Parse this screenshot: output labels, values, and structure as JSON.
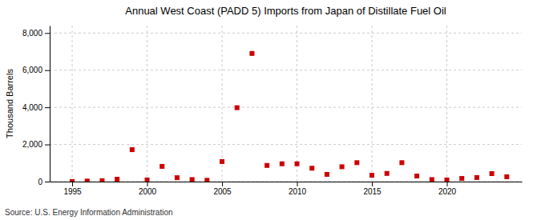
{
  "chart_data": {
    "type": "scatter",
    "title": "Annual West Coast (PADD 5) Imports from Japan of Distillate Fuel Oil",
    "ylabel": "Thousand Barrels",
    "annotations": [
      "Source: U.S. Energy Information Administration"
    ],
    "color": "#cc0000",
    "marker": "square",
    "grid": true,
    "xlim": [
      1993.5,
      2025
    ],
    "ylim": [
      0,
      8400
    ],
    "xticks": [
      1995,
      2000,
      2005,
      2010,
      2015,
      2020
    ],
    "yticks": [
      0,
      {
        "value": 2000,
        "label": "2,000"
      },
      {
        "value": 4000,
        "label": "4,000"
      },
      {
        "value": 6000,
        "label": "6,000"
      },
      {
        "value": 8000,
        "label": "8,000"
      }
    ],
    "x": [
      1995,
      1996,
      1997,
      1998,
      1999,
      2000,
      2001,
      2002,
      2003,
      2004,
      2005,
      2006,
      2007,
      2008,
      2009,
      2010,
      2011,
      2012,
      2013,
      2014,
      2015,
      2016,
      2017,
      2018,
      2019,
      2020,
      2021,
      2022,
      2023,
      2024
    ],
    "values": [
      0,
      30,
      50,
      130,
      1720,
      90,
      820,
      210,
      110,
      70,
      1080,
      3980,
      6900,
      870,
      960,
      960,
      720,
      390,
      800,
      1020,
      340,
      440,
      1020,
      300,
      110,
      90,
      170,
      220,
      430,
      260
    ]
  }
}
